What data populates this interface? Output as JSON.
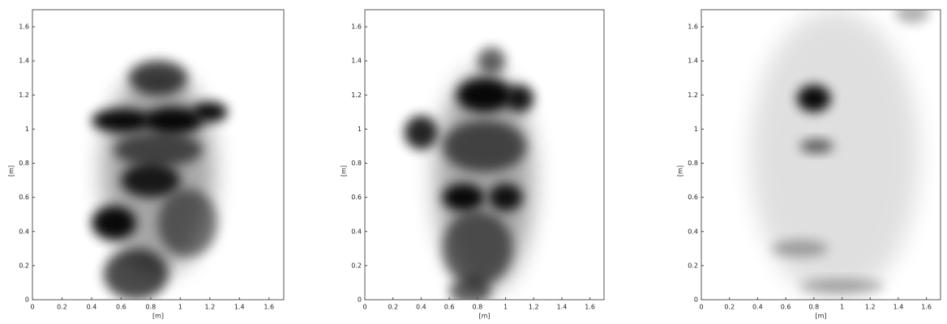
{
  "chart_data": [
    {
      "type": "image",
      "x_label": "[m]",
      "y_label": "[m]",
      "xlim": [
        0,
        1.7
      ],
      "ylim": [
        0,
        1.7
      ],
      "xticks": [
        0,
        0.2,
        0.4,
        0.6,
        0.8,
        1,
        1.2,
        1.4,
        1.6
      ],
      "yticks": [
        0,
        0.2,
        0.4,
        0.6,
        0.8,
        1,
        1.2,
        1.4,
        1.6
      ]
    },
    {
      "type": "image",
      "x_label": "[m]",
      "y_label": "[m]",
      "xlim": [
        0,
        1.7
      ],
      "ylim": [
        0,
        1.7
      ],
      "xticks": [
        0,
        0.2,
        0.4,
        0.6,
        0.8,
        1,
        1.2,
        1.4,
        1.6
      ],
      "yticks": [
        0,
        0.2,
        0.4,
        0.6,
        0.8,
        1,
        1.2,
        1.4,
        1.6
      ]
    },
    {
      "type": "image",
      "x_label": "[m]",
      "y_label": "[m]",
      "xlim": [
        0,
        1.7
      ],
      "ylim": [
        0,
        1.7
      ],
      "xticks": [
        0,
        0.2,
        0.4,
        0.6,
        0.8,
        1,
        1.2,
        1.4,
        1.6
      ],
      "yticks": [
        0,
        0.2,
        0.4,
        0.6,
        0.8,
        1,
        1.2,
        1.4,
        1.6
      ]
    }
  ]
}
